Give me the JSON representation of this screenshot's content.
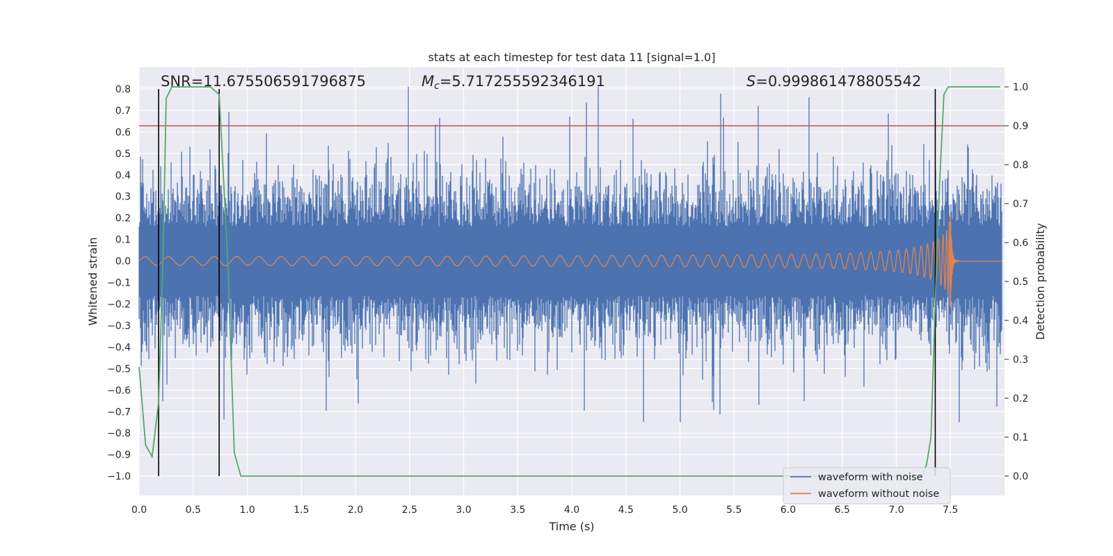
{
  "chart_data": {
    "type": "line",
    "title": "stats at each timestep for test data 11 [signal=1.0]",
    "xlabel": "Time (s)",
    "ylabel": "Whitened strain",
    "y2label": "Detection probability",
    "xlim": [
      0.0,
      8.0
    ],
    "ylim": [
      -1.09,
      0.9
    ],
    "y2lim": [
      -0.05,
      1.05
    ],
    "xticks": [
      0.0,
      0.5,
      1.0,
      1.5,
      2.0,
      2.5,
      3.0,
      3.5,
      4.0,
      4.5,
      5.0,
      5.5,
      6.0,
      6.5,
      7.0,
      7.5
    ],
    "xtick_labels": [
      "0.0",
      "0.5",
      "1.0",
      "1.5",
      "2.0",
      "2.5",
      "3.0",
      "3.5",
      "4.0",
      "4.5",
      "5.0",
      "5.5",
      "6.0",
      "6.5",
      "7.0",
      "7.5"
    ],
    "yticks": [
      0.8,
      0.7,
      0.6,
      0.5,
      0.4,
      0.3,
      0.2,
      0.1,
      0.0,
      -0.1,
      -0.2,
      -0.3,
      -0.4,
      -0.5,
      -0.6,
      -0.7,
      -0.8,
      -0.9,
      -1.0
    ],
    "ytick_labels": [
      "0.8",
      "0.7",
      "0.6",
      "0.5",
      "0.4",
      "0.3",
      "0.2",
      "0.1",
      "0.0",
      "−0.1",
      "−0.2",
      "−0.3",
      "−0.4",
      "−0.5",
      "−0.6",
      "−0.7",
      "−0.8",
      "−0.9",
      "−1.0"
    ],
    "y2ticks": [
      1.0,
      0.9,
      0.8,
      0.7,
      0.6,
      0.5,
      0.4,
      0.3,
      0.2,
      0.1,
      0.0
    ],
    "y2tick_labels": [
      "1.0",
      "0.9",
      "0.8",
      "0.7",
      "0.6",
      "0.5",
      "0.4",
      "0.3",
      "0.2",
      "0.1",
      "0.0"
    ],
    "annotations": {
      "snr": "SNR=11.675506591796875",
      "mc_symbol": "M",
      "mc_subscript": "c",
      "mc_value": "=5.717255592346191",
      "s_symbol": "S",
      "s_value": "=0.999861478805542"
    },
    "threshold_y2": 0.9,
    "vlines_x": [
      0.18,
      0.74,
      7.36
    ],
    "series": [
      {
        "name": "waveform with noise",
        "color": "#4c72b0",
        "description": "dense noisy strain, amplitude ~0.25 typical, peaks up to ~0.8",
        "noise_seed": 11,
        "typical_amplitude": 0.25,
        "peak_amplitude": 0.8
      },
      {
        "name": "waveform without noise",
        "color": "#dd8452",
        "description": "chirp signal growing in amplitude and frequency, merger at ~7.5 s",
        "start_amplitude": 0.02,
        "merger_time": 7.5,
        "merger_amplitude": 0.26
      },
      {
        "name": "detection probability",
        "axis": "y2",
        "color": "#55a868",
        "x": [
          0.0,
          0.06,
          0.12,
          0.18,
          0.22,
          0.25,
          0.3,
          0.35,
          0.4,
          0.5,
          0.6,
          0.66,
          0.74,
          0.82,
          0.88,
          0.94,
          1.0,
          2.0,
          3.0,
          4.0,
          5.0,
          6.0,
          7.0,
          7.2,
          7.24,
          7.28,
          7.32,
          7.36,
          7.4,
          7.44,
          7.48,
          7.55,
          7.65,
          7.75,
          7.85,
          7.96
        ],
        "y": [
          0.28,
          0.08,
          0.05,
          0.19,
          0.55,
          0.97,
          1.0,
          1.0,
          1.0,
          1.0,
          1.0,
          1.0,
          0.98,
          0.55,
          0.06,
          0.0,
          0.0,
          0.0,
          0.0,
          0.0,
          0.0,
          0.0,
          0.0,
          0.0,
          0.0,
          0.03,
          0.1,
          0.45,
          0.75,
          0.98,
          1.0,
          1.0,
          1.0,
          1.0,
          1.0,
          1.0
        ]
      }
    ],
    "legend": {
      "position": "lower-right",
      "entries": [
        "waveform with noise",
        "waveform without noise"
      ]
    },
    "colors": {
      "background": "#eaeaf2",
      "grid": "#ffffff",
      "threshold": "#c44e52",
      "vline": "#000000"
    }
  }
}
